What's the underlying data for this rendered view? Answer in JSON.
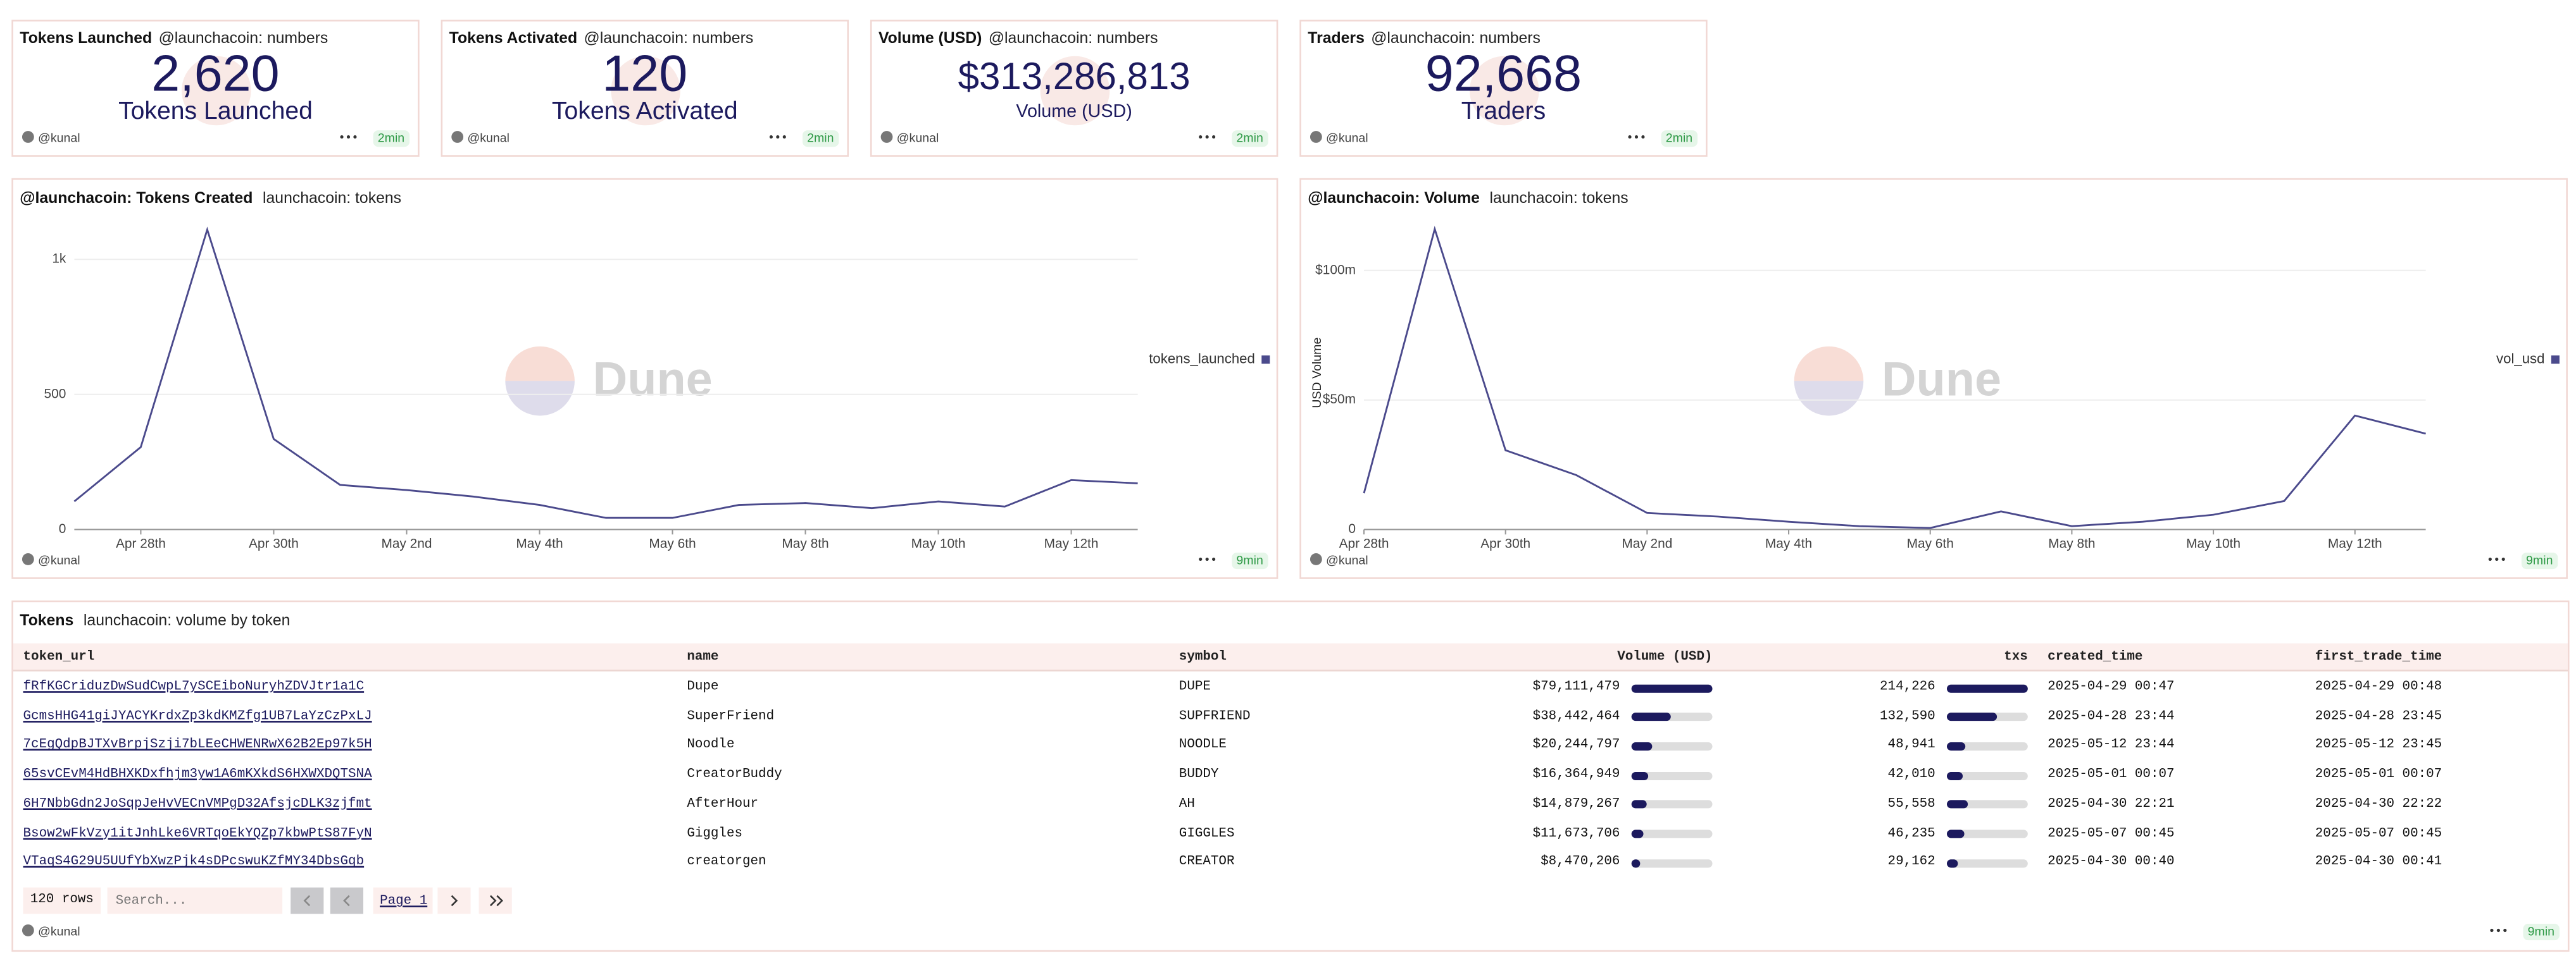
{
  "counters": [
    {
      "title": "Tokens Launched",
      "subtitle": "@launchacoin: numbers",
      "value": "2,620",
      "label": "Tokens Launched",
      "author": "@kunal",
      "age": "2min"
    },
    {
      "title": "Tokens Activated",
      "subtitle": "@launchacoin: numbers",
      "value": "120",
      "label": "Tokens Activated",
      "author": "@kunal",
      "age": "2min"
    },
    {
      "title": "Volume (USD)",
      "subtitle": "@launchacoin: numbers",
      "value": "$313,286,813",
      "label": "Volume (USD)",
      "author": "@kunal",
      "age": "2min"
    },
    {
      "title": "Traders",
      "subtitle": "@launchacoin: numbers",
      "value": "92,668",
      "label": "Traders",
      "author": "@kunal",
      "age": "2min"
    }
  ],
  "chart_data": [
    {
      "type": "line",
      "title": "@launchacoin: Tokens Created",
      "subtitle": "launchacoin: tokens",
      "watermark": "Dune",
      "categories": [
        null,
        "Apr 28th",
        null,
        "Apr 30th",
        null,
        "May 2nd",
        null,
        "May 4th",
        null,
        "May 6th",
        null,
        "May 8th",
        null,
        "May 10th",
        null,
        "May 12th",
        null
      ],
      "series": [
        {
          "name": "tokens_launched",
          "color": "#4b4a8c",
          "values": [
            104,
            305,
            1110,
            335,
            165,
            146,
            122,
            91,
            43,
            43,
            91,
            98,
            79,
            104,
            85,
            183,
            171
          ]
        }
      ],
      "ylim": [
        0,
        1160
      ],
      "yticks": [
        0,
        500,
        {
          "value": 1000,
          "label": "1k"
        }
      ],
      "grid": true,
      "legend": "right",
      "author": "@kunal",
      "age": "9min"
    },
    {
      "type": "line",
      "title": "@launchacoin: Volume",
      "subtitle": "launchacoin: tokens",
      "watermark": "Dune",
      "y_label": "USD Volume",
      "categories": [
        "Apr 28th",
        null,
        "Apr 30th",
        null,
        "May 2nd",
        null,
        "May 4th",
        null,
        "May 6th",
        null,
        "May 8th",
        null,
        "May 10th",
        null,
        "May 12th",
        null
      ],
      "series": [
        {
          "name": "vol_usd",
          "color": "#4b4a8c",
          "values": [
            14000000,
            116000000,
            30600000,
            21000000,
            6400000,
            5000000,
            3000000,
            1300000,
            600000,
            7000000,
            1300000,
            3000000,
            5700000,
            11000000,
            44000000,
            37000000
          ]
        }
      ],
      "ylim": [
        0,
        121000000
      ],
      "yticks": [
        0,
        {
          "value": 50000000,
          "label": "$50m"
        },
        {
          "value": 100000000,
          "label": "$100m"
        }
      ],
      "grid": true,
      "legend": "right",
      "author": "@kunal",
      "age": "9min"
    }
  ],
  "table": {
    "title": "Tokens",
    "subtitle": "launchacoin: volume by token",
    "columns": [
      "token_url",
      "name",
      "symbol",
      "Volume (USD)",
      "txs",
      "created_time",
      "first_trade_time"
    ],
    "rows": [
      {
        "token_url": "fRfKGCriduzDwSudCwpL7ySCEiboNuryhZDVJtr1a1C",
        "name": "Dupe",
        "symbol": "DUPE",
        "volume": 79111479,
        "volume_label": "$79,111,479",
        "txs": 214226,
        "txs_label": "214,226",
        "created_time": "2025-04-29 00:47",
        "first_trade_time": "2025-04-29 00:48"
      },
      {
        "token_url": "GcmsHHG41giJYACYKrdxZp3kdKMZfg1UB7LaYzCzPxLJ",
        "name": "SuperFriend",
        "symbol": "SUPFRIEND",
        "volume": 38442464,
        "volume_label": "$38,442,464",
        "txs": 132590,
        "txs_label": "132,590",
        "created_time": "2025-04-28 23:44",
        "first_trade_time": "2025-04-28 23:45"
      },
      {
        "token_url": "7cEgQdpBJTXvBrpjSzji7bLEeCHWENRwX62B2Ep97k5H",
        "name": "Noodle",
        "symbol": "NOODLE",
        "volume": 20244797,
        "volume_label": "$20,244,797",
        "txs": 48941,
        "txs_label": "48,941",
        "created_time": "2025-05-12 23:44",
        "first_trade_time": "2025-05-12 23:45"
      },
      {
        "token_url": "65svCEvM4HdBHXKDxfhjm3yw1A6mKXkdS6HXWXDQTSNA",
        "name": "CreatorBuddy",
        "symbol": "BUDDY",
        "volume": 16364949,
        "volume_label": "$16,364,949",
        "txs": 42010,
        "txs_label": "42,010",
        "created_time": "2025-05-01 00:07",
        "first_trade_time": "2025-05-01 00:07"
      },
      {
        "token_url": "6H7NbbGdn2JoSqpJeHvVECnVMPgD32AfsjcDLK3zjfmt",
        "name": "AfterHour",
        "symbol": "AH",
        "volume": 14879267,
        "volume_label": "$14,879,267",
        "txs": 55558,
        "txs_label": "55,558",
        "created_time": "2025-04-30 22:21",
        "first_trade_time": "2025-04-30 22:22"
      },
      {
        "token_url": "Bsow2wFkVzy1itJnhLke6VRTqoEkYQZp7kbwPtS87FyN",
        "name": "Giggles",
        "symbol": "GIGGLES",
        "volume": 11673706,
        "volume_label": "$11,673,706",
        "txs": 46235,
        "txs_label": "46,235",
        "created_time": "2025-05-07 00:45",
        "first_trade_time": "2025-05-07 00:45"
      },
      {
        "token_url": "VTaqS4G29U5UUfYbXwzPjk4sDPcswuKZfMY34DbsGqb",
        "name": "creatorgen",
        "symbol": "CREATOR",
        "volume": 8470206,
        "volume_label": "$8,470,206",
        "txs": 29162,
        "txs_label": "29,162",
        "created_time": "2025-04-30 00:40",
        "first_trade_time": "2025-04-30 00:41"
      }
    ],
    "row_count": "120 rows",
    "search_placeholder": "Search...",
    "page": "Page 1",
    "author": "@kunal",
    "age": "9min"
  }
}
